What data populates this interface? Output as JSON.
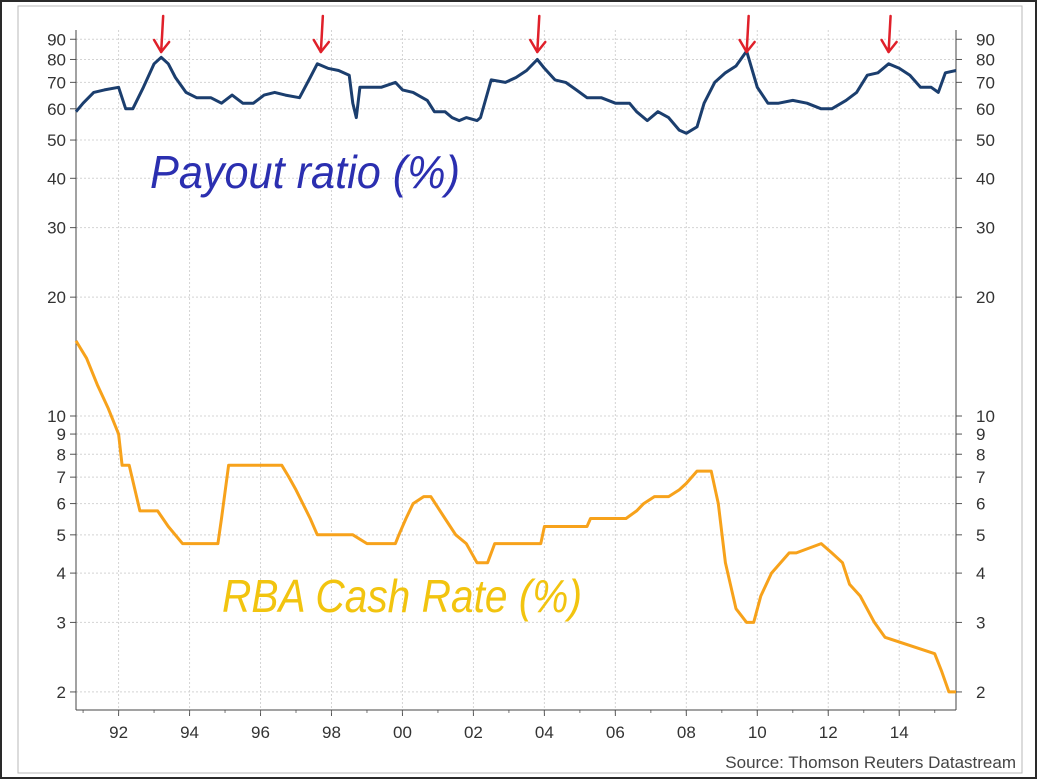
{
  "chart_data": {
    "type": "line",
    "yscale": "log",
    "ylim": [
      1.8,
      95
    ],
    "xlim": [
      1990.8,
      2015.6
    ],
    "yticks": [
      2,
      3,
      4,
      5,
      6,
      7,
      8,
      9,
      10,
      20,
      30,
      40,
      50,
      60,
      70,
      80,
      90
    ],
    "xticks": [
      1992,
      1994,
      1996,
      1998,
      2000,
      2002,
      2004,
      2006,
      2008,
      2010,
      2012,
      2014
    ],
    "xtick_labels": [
      "92",
      "94",
      "96",
      "98",
      "00",
      "02",
      "04",
      "06",
      "08",
      "10",
      "12",
      "14"
    ],
    "grid": true,
    "source": "Source: Thomson Reuters Datastream",
    "annotations": [
      {
        "text": "Payout ratio (%)",
        "color": "#2b2fb0"
      },
      {
        "text": "RBA Cash Rate (%)",
        "color": "#f2c40f"
      }
    ],
    "arrows": {
      "color": "#e0202a",
      "x": [
        1993.2,
        1997.7,
        2003.8,
        2009.7,
        2013.7
      ]
    },
    "series": [
      {
        "color": "#1b3e6e",
        "x": [
          1990.8,
          1991.0,
          1991.3,
          1991.6,
          1992.0,
          1992.2,
          1992.4,
          1992.7,
          1993.0,
          1993.2,
          1993.4,
          1993.6,
          1993.9,
          1994.2,
          1994.6,
          1994.9,
          1995.2,
          1995.5,
          1995.8,
          1996.1,
          1996.4,
          1996.7,
          1997.1,
          1997.4,
          1997.6,
          1997.9,
          1998.2,
          1998.5,
          1998.6,
          1998.7,
          1998.8,
          1999.1,
          1999.4,
          1999.8,
          2000.0,
          2000.3,
          2000.7,
          2000.9,
          2001.2,
          2001.4,
          2001.6,
          2001.8,
          2002.1,
          2002.2,
          2002.5,
          2002.9,
          2003.2,
          2003.5,
          2003.8,
          2004.0,
          2004.3,
          2004.6,
          2004.9,
          2005.2,
          2005.6,
          2006.0,
          2006.4,
          2006.6,
          2006.9,
          2007.2,
          2007.5,
          2007.8,
          2008.0,
          2008.3,
          2008.5,
          2008.8,
          2009.1,
          2009.4,
          2009.7,
          2010.0,
          2010.3,
          2010.6,
          2011.0,
          2011.4,
          2011.8,
          2012.1,
          2012.5,
          2012.8,
          2013.1,
          2013.4,
          2013.7,
          2014.0,
          2014.3,
          2014.6,
          2014.9,
          2015.1,
          2015.3,
          2015.6
        ],
        "values": [
          59,
          62,
          66,
          67,
          68,
          60,
          60,
          68,
          78,
          81,
          78,
          72,
          66,
          64,
          64,
          62,
          65,
          62,
          62,
          65,
          66,
          65,
          64,
          72,
          78,
          76,
          75,
          73,
          62,
          57,
          68,
          68,
          68,
          70,
          67,
          66,
          63,
          59,
          59,
          57,
          56,
          57,
          56,
          57,
          71,
          70,
          72,
          75,
          80,
          76,
          71,
          70,
          67,
          64,
          64,
          62,
          62,
          59,
          56,
          59,
          57,
          53,
          52,
          54,
          62,
          70,
          74,
          77,
          84,
          68,
          62,
          62,
          63,
          62,
          60,
          60,
          63,
          66,
          73,
          74,
          78,
          76,
          73,
          68,
          68,
          66,
          74,
          75
        ]
      },
      {
        "color": "#f7a21b",
        "x": [
          1990.8,
          1991.1,
          1991.4,
          1991.7,
          1992.0,
          1992.1,
          1992.3,
          1992.6,
          1993.1,
          1993.4,
          1993.8,
          1994.8,
          1994.9,
          1995.1,
          1996.6,
          1996.8,
          1997.0,
          1997.4,
          1997.6,
          1998.6,
          1999.0,
          1999.8,
          1999.9,
          2000.1,
          2000.3,
          2000.6,
          2000.8,
          2001.2,
          2001.5,
          2001.8,
          2002.1,
          2002.4,
          2002.6,
          2003.9,
          2004.0,
          2005.2,
          2005.3,
          2006.3,
          2006.6,
          2006.8,
          2007.1,
          2007.5,
          2007.8,
          2008.0,
          2008.3,
          2008.7,
          2008.9,
          2009.1,
          2009.4,
          2009.7,
          2009.9,
          2010.1,
          2010.4,
          2010.9,
          2011.1,
          2011.8,
          2012.1,
          2012.4,
          2012.6,
          2012.9,
          2013.3,
          2013.6,
          2015.0,
          2015.2,
          2015.4,
          2015.6
        ],
        "values": [
          15.5,
          14,
          12,
          10.5,
          9,
          7.5,
          7.5,
          5.75,
          5.75,
          5.25,
          4.75,
          4.75,
          5.5,
          7.5,
          7.5,
          7.0,
          6.5,
          5.5,
          5.0,
          5.0,
          4.75,
          4.75,
          5.0,
          5.5,
          6.0,
          6.25,
          6.25,
          5.5,
          5.0,
          4.75,
          4.25,
          4.25,
          4.75,
          4.75,
          5.25,
          5.25,
          5.5,
          5.5,
          5.75,
          6.0,
          6.25,
          6.25,
          6.5,
          6.75,
          7.25,
          7.25,
          6.0,
          4.25,
          3.25,
          3.0,
          3.0,
          3.5,
          4.0,
          4.5,
          4.5,
          4.75,
          4.5,
          4.25,
          3.75,
          3.5,
          3.0,
          2.75,
          2.5,
          2.25,
          2.0,
          2.0
        ]
      }
    ]
  }
}
